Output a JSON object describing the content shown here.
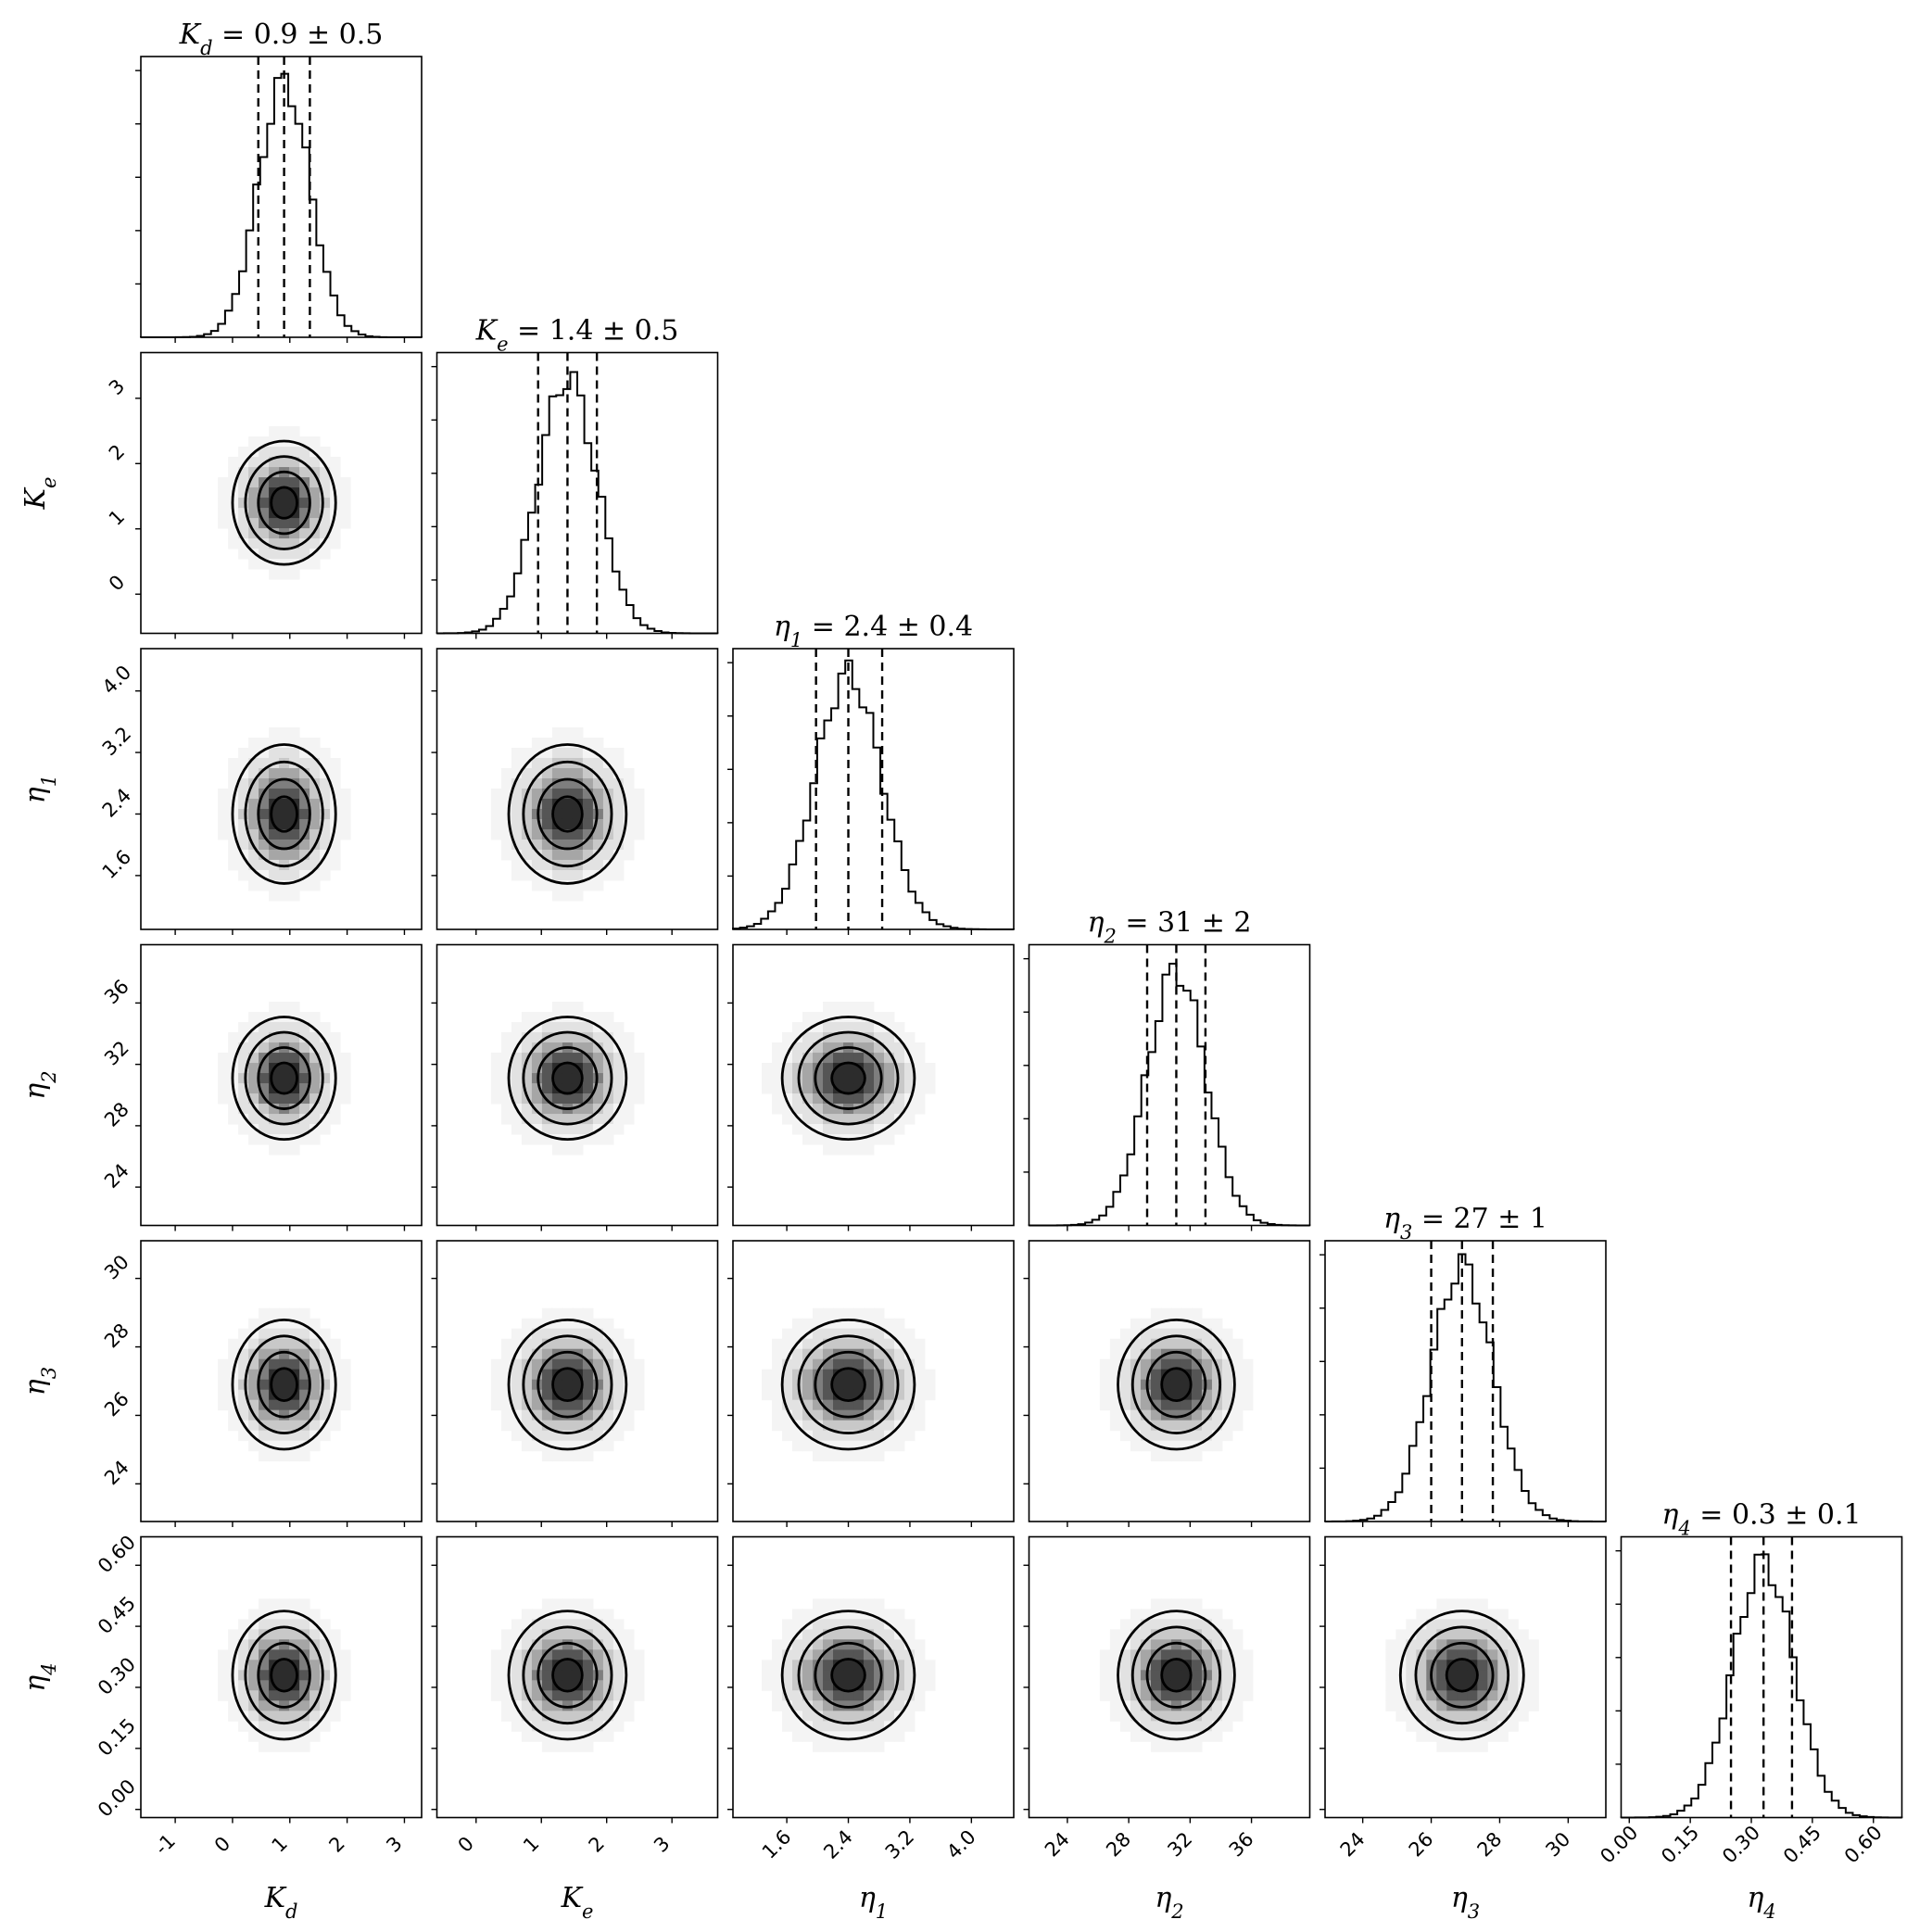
{
  "chart_data": {
    "type": "corner",
    "parameters": [
      {
        "label": "K_d",
        "label_html": "K<tspan baseline-shift='sub' font-size='21'>d</tspan>",
        "title": "0.9 ± 0.5",
        "median": 0.9,
        "lo": 0.45,
        "hi": 1.35,
        "range": [
          -1.6,
          3.3
        ],
        "ticks": [
          -1,
          0,
          1,
          2,
          3
        ]
      },
      {
        "label": "K_e",
        "label_html": "K<tspan baseline-shift='sub' font-size='21'>e</tspan>",
        "title": "1.4 ± 0.5",
        "median": 1.4,
        "lo": 0.95,
        "hi": 1.85,
        "range": [
          -0.6,
          3.7
        ],
        "ticks": [
          0,
          1,
          2,
          3
        ]
      },
      {
        "label": "η_1",
        "label_html": "η<tspan baseline-shift='sub' font-size='21'>1</tspan>",
        "title": "2.4 ± 0.4",
        "median": 2.4,
        "lo": 1.98,
        "hi": 2.84,
        "range": [
          0.9,
          4.55
        ],
        "ticks": [
          "1.6",
          "2.4",
          "3.2",
          "4.0"
        ]
      },
      {
        "label": "η_2",
        "label_html": "η<tspan baseline-shift='sub' font-size='21'>2</tspan>",
        "title": "31 ± 2",
        "median": 31.1,
        "lo": 29.2,
        "hi": 33.0,
        "range": [
          21.5,
          39.8
        ],
        "ticks": [
          24,
          28,
          32,
          36
        ]
      },
      {
        "label": "η_3",
        "label_html": "η<tspan baseline-shift='sub' font-size='21'>3</tspan>",
        "title": "27 ± 1",
        "median": 26.9,
        "lo": 26.0,
        "hi": 27.8,
        "range": [
          22.9,
          31.1
        ],
        "ticks": [
          24,
          26,
          28,
          30
        ]
      },
      {
        "label": "η_4",
        "label_html": "η<tspan baseline-shift='sub' font-size='21'>4</tspan>",
        "title": "0.3 ± 0.1",
        "median": 0.33,
        "lo": 0.25,
        "hi": 0.4,
        "range": [
          -0.02,
          0.67
        ],
        "ticks": [
          "0.00",
          "0.15",
          "0.30",
          "0.45",
          "0.60"
        ]
      }
    ],
    "titles": [
      "= 0.9 ± 0.5",
      "= 1.4 ± 0.5",
      "= 2.4 ± 0.4",
      "= 31 ± 2",
      "= 27 ± 1",
      "= 0.3 ± 0.1"
    ],
    "xlabels": [
      "K_d",
      "K_e",
      "η_1",
      "η_2",
      "η_3",
      "η_4"
    ],
    "ylabels": [
      "K_e",
      "η_1",
      "η_2",
      "η_3",
      "η_4"
    ],
    "quantile_lines": "dashed (16%, 50%, 84%)",
    "contours": 3,
    "colors": {
      "line": "#000000",
      "density": "#1a1a1a",
      "background": "#ffffff"
    }
  }
}
